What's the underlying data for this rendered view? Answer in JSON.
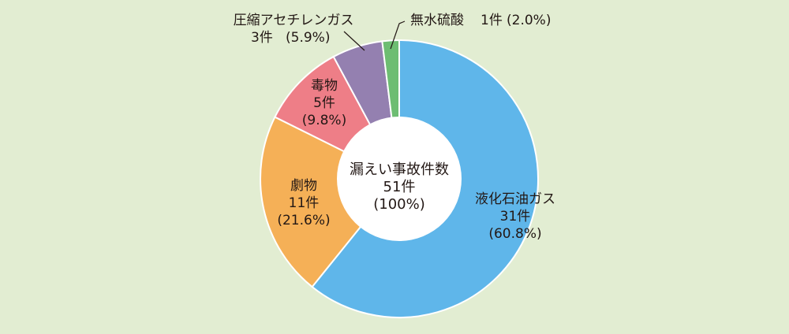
{
  "chart_data": {
    "type": "pie",
    "center": {
      "title": "漏えい事故件数",
      "count": "51件",
      "percent": "(100%)"
    },
    "slices": [
      {
        "name": "液化石油ガス",
        "value": 31,
        "count_label": "31件",
        "percent_label": "(60.8%)",
        "color": "#5fb6ea"
      },
      {
        "name": "劇物",
        "value": 11,
        "count_label": "11件",
        "percent_label": "(21.6%)",
        "color": "#f5b057"
      },
      {
        "name": "毒物",
        "value": 5,
        "count_label": "5件",
        "percent_label": "(9.8%)",
        "color": "#ee7e87"
      },
      {
        "name": "圧縮アセチレンガス",
        "value": 3,
        "count_label": "3件",
        "percent_label": "(5.9%)",
        "color": "#9480b0"
      },
      {
        "name": "無水硫酸",
        "value": 1,
        "count_label": "1件",
        "percent_label": "(2.0%)",
        "color": "#6dbd72"
      }
    ]
  }
}
